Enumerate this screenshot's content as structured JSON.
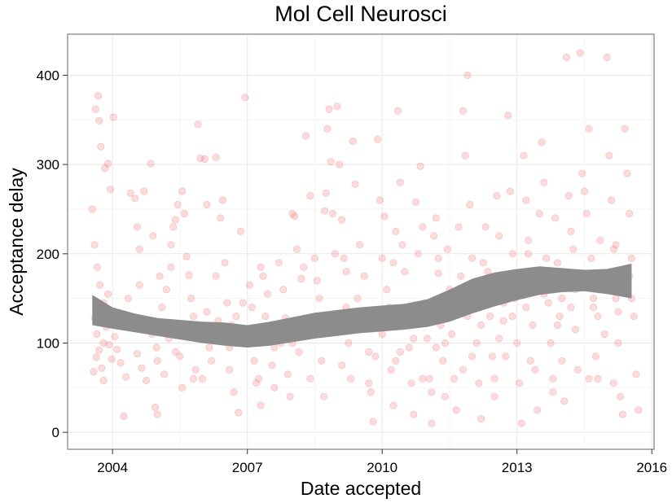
{
  "chart_data": {
    "type": "scatter",
    "title": "Mol Cell Neurosci",
    "xlabel": "Date accepted",
    "ylabel": "Acceptance delay",
    "x_ticks": [
      "2004",
      "2007",
      "2010",
      "2013",
      "2016"
    ],
    "y_ticks": [
      "0",
      "100",
      "200",
      "300",
      "400"
    ],
    "xlim": [
      2003.0,
      2016.05
    ],
    "ylim": [
      -19,
      446
    ],
    "grid": true,
    "legend": "none",
    "point_color": "#f07070",
    "point_opacity": 0.25,
    "band_color": "#8c8c8c",
    "x_scale": "date (years)",
    "points": [
      [
        2003.55,
        250
      ],
      [
        2003.62,
        362
      ],
      [
        2003.68,
        377
      ],
      [
        2003.7,
        349
      ],
      [
        2003.74,
        320
      ],
      [
        2003.83,
        296
      ],
      [
        2003.9,
        301
      ],
      [
        2003.95,
        272
      ],
      [
        2004.02,
        353
      ],
      [
        2003.6,
        210
      ],
      [
        2003.66,
        185
      ],
      [
        2003.72,
        165
      ],
      [
        2003.8,
        145
      ],
      [
        2003.86,
        118
      ],
      [
        2003.92,
        98
      ],
      [
        2003.98,
        82
      ],
      [
        2003.6,
        128
      ],
      [
        2003.65,
        110
      ],
      [
        2003.7,
        92
      ],
      [
        2003.76,
        72
      ],
      [
        2003.8,
        58
      ],
      [
        2003.58,
        68
      ],
      [
        2003.64,
        84
      ],
      [
        2003.74,
        138
      ],
      [
        2004.05,
        107
      ],
      [
        2004.1,
        93
      ],
      [
        2004.18,
        78
      ],
      [
        2004.25,
        18
      ],
      [
        2004.3,
        62
      ],
      [
        2004.4,
        268
      ],
      [
        2004.5,
        262
      ],
      [
        2004.55,
        230
      ],
      [
        2004.6,
        205
      ],
      [
        2004.7,
        270
      ],
      [
        2004.85,
        301
      ],
      [
        2004.9,
        220
      ],
      [
        2004.95,
        28
      ],
      [
        2005.0,
        20
      ],
      [
        2005.05,
        175
      ],
      [
        2005.1,
        140
      ],
      [
        2004.35,
        150
      ],
      [
        2004.45,
        120
      ],
      [
        2004.55,
        88
      ],
      [
        2004.65,
        72
      ],
      [
        2004.75,
        58
      ],
      [
        2004.88,
        110
      ],
      [
        2004.98,
        95
      ],
      [
        2005.2,
        160
      ],
      [
        2005.3,
        210
      ],
      [
        2005.35,
        230
      ],
      [
        2005.4,
        238
      ],
      [
        2005.45,
        255
      ],
      [
        2005.55,
        270
      ],
      [
        2005.6,
        245
      ],
      [
        2005.65,
        197
      ],
      [
        2005.7,
        176
      ],
      [
        2005.75,
        150
      ],
      [
        2005.8,
        130
      ],
      [
        2005.9,
        345
      ],
      [
        2005.95,
        307
      ],
      [
        2006.05,
        306
      ],
      [
        2006.1,
        255
      ],
      [
        2006.3,
        308
      ],
      [
        2006.4,
        240
      ],
      [
        2006.45,
        260
      ],
      [
        2006.5,
        190
      ],
      [
        2006.55,
        145
      ],
      [
        2006.6,
        95
      ],
      [
        2006.7,
        45
      ],
      [
        2006.8,
        22
      ],
      [
        2005.25,
        105
      ],
      [
        2005.5,
        85
      ],
      [
        2005.85,
        70
      ],
      [
        2006.0,
        60
      ],
      [
        2006.2,
        80
      ],
      [
        2006.65,
        120
      ],
      [
        2006.75,
        130
      ],
      [
        2006.85,
        225
      ],
      [
        2006.95,
        375
      ],
      [
        2007.05,
        165
      ],
      [
        2007.1,
        140
      ],
      [
        2007.15,
        80
      ],
      [
        2007.2,
        55
      ],
      [
        2007.3,
        30
      ],
      [
        2007.35,
        175
      ],
      [
        2007.45,
        155
      ],
      [
        2007.5,
        110
      ],
      [
        2007.55,
        75
      ],
      [
        2007.6,
        95
      ],
      [
        2007.7,
        190
      ],
      [
        2007.8,
        160
      ],
      [
        2007.85,
        128
      ],
      [
        2007.9,
        65
      ],
      [
        2007.95,
        40
      ],
      [
        2008.0,
        245
      ],
      [
        2008.05,
        242
      ],
      [
        2008.1,
        205
      ],
      [
        2008.2,
        172
      ],
      [
        2008.3,
        332
      ],
      [
        2008.4,
        265
      ],
      [
        2008.5,
        195
      ],
      [
        2008.55,
        170
      ],
      [
        2008.6,
        150
      ],
      [
        2008.65,
        80
      ],
      [
        2008.7,
        40
      ],
      [
        2008.72,
        248
      ],
      [
        2008.75,
        268
      ],
      [
        2008.78,
        340
      ],
      [
        2008.82,
        362
      ],
      [
        2008.86,
        303
      ],
      [
        2008.9,
        245
      ],
      [
        2008.95,
        200
      ],
      [
        2009.0,
        365
      ],
      [
        2009.05,
        300
      ],
      [
        2009.1,
        238
      ],
      [
        2009.15,
        195
      ],
      [
        2009.2,
        140
      ],
      [
        2009.25,
        100
      ],
      [
        2009.3,
        60
      ],
      [
        2009.35,
        326
      ],
      [
        2009.4,
        278
      ],
      [
        2009.5,
        210
      ],
      [
        2009.6,
        175
      ],
      [
        2009.65,
        130
      ],
      [
        2009.7,
        90
      ],
      [
        2009.75,
        45
      ],
      [
        2009.8,
        12
      ],
      [
        2009.9,
        328
      ],
      [
        2009.95,
        260
      ],
      [
        2010.0,
        195
      ],
      [
        2010.05,
        242
      ],
      [
        2010.1,
        160
      ],
      [
        2010.15,
        120
      ],
      [
        2010.2,
        70
      ],
      [
        2010.25,
        30
      ],
      [
        2010.3,
        225
      ],
      [
        2010.35,
        360
      ],
      [
        2010.4,
        280
      ],
      [
        2010.45,
        210
      ],
      [
        2010.5,
        180
      ],
      [
        2010.55,
        135
      ],
      [
        2010.6,
        95
      ],
      [
        2010.65,
        55
      ],
      [
        2010.7,
        20
      ],
      [
        2010.75,
        258
      ],
      [
        2010.8,
        200
      ],
      [
        2010.85,
        298
      ],
      [
        2010.9,
        230
      ],
      [
        2010.95,
        145
      ],
      [
        2011.0,
        105
      ],
      [
        2011.05,
        60
      ],
      [
        2011.1,
        10
      ],
      [
        2011.15,
        220
      ],
      [
        2011.2,
        240
      ],
      [
        2011.25,
        178
      ],
      [
        2011.3,
        120
      ],
      [
        2011.35,
        80
      ],
      [
        2011.4,
        40
      ],
      [
        2011.45,
        205
      ],
      [
        2011.5,
        160
      ],
      [
        2011.55,
        110
      ],
      [
        2011.6,
        60
      ],
      [
        2011.65,
        25
      ],
      [
        2011.7,
        230
      ],
      [
        2011.75,
        175
      ],
      [
        2011.8,
        360
      ],
      [
        2011.85,
        310
      ],
      [
        2011.9,
        400
      ],
      [
        2011.95,
        255
      ],
      [
        2012.0,
        195
      ],
      [
        2012.05,
        150
      ],
      [
        2012.1,
        100
      ],
      [
        2012.15,
        55
      ],
      [
        2012.2,
        15
      ],
      [
        2012.3,
        230
      ],
      [
        2012.35,
        180
      ],
      [
        2012.4,
        130
      ],
      [
        2012.45,
        85
      ],
      [
        2012.5,
        40
      ],
      [
        2012.55,
        265
      ],
      [
        2012.6,
        220
      ],
      [
        2012.65,
        175
      ],
      [
        2012.7,
        125
      ],
      [
        2012.75,
        85
      ],
      [
        2012.8,
        355
      ],
      [
        2012.85,
        270
      ],
      [
        2012.9,
        200
      ],
      [
        2012.95,
        150
      ],
      [
        2013.0,
        100
      ],
      [
        2013.05,
        55
      ],
      [
        2013.1,
        10
      ],
      [
        2013.15,
        310
      ],
      [
        2013.2,
        260
      ],
      [
        2013.25,
        215
      ],
      [
        2013.3,
        165
      ],
      [
        2013.35,
        120
      ],
      [
        2013.4,
        70
      ],
      [
        2013.45,
        25
      ],
      [
        2013.5,
        245
      ],
      [
        2013.55,
        325
      ],
      [
        2013.6,
        280
      ],
      [
        2013.65,
        195
      ],
      [
        2013.7,
        145
      ],
      [
        2013.75,
        100
      ],
      [
        2013.8,
        60
      ],
      [
        2013.85,
        240
      ],
      [
        2013.9,
        190
      ],
      [
        2013.95,
        130
      ],
      [
        2014.0,
        80
      ],
      [
        2014.05,
        35
      ],
      [
        2014.1,
        420
      ],
      [
        2014.15,
        265
      ],
      [
        2014.2,
        225
      ],
      [
        2014.25,
        170
      ],
      [
        2014.3,
        115
      ],
      [
        2014.35,
        70
      ],
      [
        2014.4,
        425
      ],
      [
        2014.45,
        290
      ],
      [
        2014.5,
        270
      ],
      [
        2014.55,
        245
      ],
      [
        2014.6,
        340
      ],
      [
        2014.65,
        195
      ],
      [
        2014.7,
        140
      ],
      [
        2014.75,
        85
      ],
      [
        2014.8,
        60
      ],
      [
        2014.85,
        215
      ],
      [
        2014.9,
        160
      ],
      [
        2014.95,
        110
      ],
      [
        2015.0,
        420
      ],
      [
        2015.05,
        310
      ],
      [
        2015.1,
        260
      ],
      [
        2015.15,
        205
      ],
      [
        2015.2,
        150
      ],
      [
        2015.25,
        100
      ],
      [
        2015.3,
        40
      ],
      [
        2015.35,
        20
      ],
      [
        2015.4,
        340
      ],
      [
        2015.45,
        290
      ],
      [
        2015.5,
        245
      ],
      [
        2015.55,
        195
      ],
      [
        2015.6,
        130
      ],
      [
        2015.65,
        65
      ],
      [
        2015.7,
        25
      ],
      [
        2005.15,
        65
      ],
      [
        2005.55,
        50
      ],
      [
        2006.15,
        95
      ],
      [
        2006.35,
        125
      ],
      [
        2007.25,
        60
      ],
      [
        2007.65,
        120
      ],
      [
        2008.15,
        90
      ],
      [
        2008.45,
        110
      ],
      [
        2009.45,
        150
      ],
      [
        2009.85,
        85
      ],
      [
        2010.4,
        90
      ],
      [
        2010.9,
        60
      ],
      [
        2011.3,
        150
      ],
      [
        2011.9,
        130
      ],
      [
        2012.25,
        160
      ],
      [
        2012.7,
        145
      ],
      [
        2013.2,
        140
      ],
      [
        2013.6,
        155
      ],
      [
        2014.0,
        150
      ],
      [
        2014.5,
        175
      ],
      [
        2015.0,
        165
      ],
      [
        2015.5,
        175
      ],
      [
        2004.2,
        125
      ],
      [
        2004.8,
        115
      ],
      [
        2005.6,
        120
      ],
      [
        2006.4,
        105
      ],
      [
        2007.0,
        115
      ],
      [
        2007.75,
        100
      ],
      [
        2008.35,
        125
      ],
      [
        2009.05,
        118
      ],
      [
        2009.55,
        135
      ],
      [
        2010.15,
        140
      ],
      [
        2010.7,
        105
      ],
      [
        2011.2,
        95
      ],
      [
        2011.6,
        140
      ],
      [
        2012.0,
        85
      ],
      [
        2012.4,
        170
      ],
      [
        2012.9,
        130
      ],
      [
        2013.4,
        175
      ],
      [
        2013.9,
        120
      ],
      [
        2014.3,
        160
      ],
      [
        2014.8,
        130
      ],
      [
        2015.25,
        135
      ],
      [
        2003.9,
        155
      ],
      [
        2004.6,
        165
      ],
      [
        2005.4,
        90
      ],
      [
        2006.1,
        135
      ],
      [
        2006.9,
        145
      ],
      [
        2007.4,
        130
      ],
      [
        2008.0,
        100
      ],
      [
        2008.6,
        115
      ],
      [
        2009.3,
        125
      ],
      [
        2010.0,
        110
      ],
      [
        2010.5,
        120
      ],
      [
        2011.0,
        130
      ],
      [
        2011.4,
        100
      ],
      [
        2012.2,
        120
      ],
      [
        2012.6,
        105
      ],
      [
        2013.0,
        160
      ],
      [
        2013.7,
        170
      ],
      [
        2014.2,
        140
      ],
      [
        2014.7,
        150
      ],
      [
        2015.3,
        160
      ],
      [
        2015.55,
        150
      ],
      [
        2003.8,
        100
      ],
      [
        2004.0,
        130
      ],
      [
        2005.0,
        80
      ],
      [
        2005.8,
        60
      ],
      [
        2006.6,
        70
      ],
      [
        2007.6,
        50
      ],
      [
        2008.4,
        60
      ],
      [
        2009.1,
        75
      ],
      [
        2009.7,
        55
      ],
      [
        2010.3,
        80
      ],
      [
        2011.1,
        45
      ],
      [
        2011.8,
        70
      ],
      [
        2012.5,
        60
      ],
      [
        2013.3,
        80
      ],
      [
        2013.8,
        45
      ],
      [
        2014.6,
        60
      ],
      [
        2015.15,
        55
      ],
      [
        2005.3,
        185
      ],
      [
        2006.3,
        175
      ],
      [
        2007.3,
        185
      ],
      [
        2008.25,
        185
      ],
      [
        2009.2,
        180
      ],
      [
        2010.25,
        190
      ],
      [
        2011.25,
        195
      ],
      [
        2012.25,
        190
      ],
      [
        2013.25,
        200
      ],
      [
        2014.25,
        205
      ],
      [
        2015.2,
        210
      ]
    ],
    "smooth_band": {
      "x": [
        2003.55,
        2004.0,
        2004.5,
        2005.0,
        2005.5,
        2006.0,
        2006.5,
        2007.0,
        2007.5,
        2008.0,
        2008.5,
        2009.0,
        2009.5,
        2010.0,
        2010.5,
        2011.0,
        2011.5,
        2012.0,
        2012.5,
        2013.0,
        2013.5,
        2014.0,
        2014.5,
        2015.0,
        2015.55
      ],
      "lower": [
        120,
        116,
        112,
        108,
        104,
        100,
        97,
        95,
        97,
        101,
        105,
        108,
        111,
        113,
        115,
        118,
        124,
        133,
        141,
        148,
        154,
        157,
        158,
        155,
        150
      ],
      "upper": [
        154,
        140,
        133,
        128,
        126,
        124,
        123,
        120,
        124,
        129,
        134,
        137,
        140,
        142,
        144,
        149,
        160,
        172,
        179,
        183,
        186,
        184,
        182,
        183,
        189
      ]
    }
  }
}
